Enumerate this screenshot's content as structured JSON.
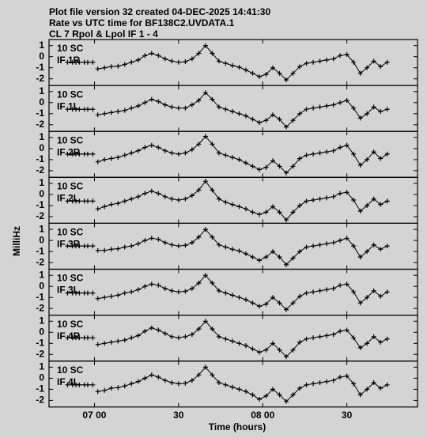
{
  "chart_data": {
    "type": "line",
    "title": "Plot file version 32  created 04-DEC-2025 14:41:30",
    "subtitle": "Rate vs UTC time for BF138C2.UVDATA.1",
    "caption": "CL 7  Rpol & Lpol  IF 1 - 4",
    "ylabel": "MilliHz",
    "xlabel": "Time (hours)",
    "xlim": [
      6.73,
      8.92
    ],
    "ylim": [
      -2.6,
      1.55
    ],
    "yticks": [
      1,
      0,
      -1,
      -2
    ],
    "xticks": [
      {
        "value": 7.0,
        "label": "07 00"
      },
      {
        "value": 7.5,
        "label": "30"
      },
      {
        "value": 8.0,
        "label": "08 00"
      },
      {
        "value": 8.5,
        "label": "30"
      }
    ],
    "color": "#000000",
    "x": [
      6.84,
      6.87,
      6.89,
      6.91,
      6.94,
      6.96,
      6.99,
      null,
      7.02,
      7.06,
      7.1,
      7.14,
      7.18,
      7.22,
      7.26,
      7.3,
      7.34,
      7.38,
      7.42,
      7.46,
      7.5,
      7.54,
      7.58,
      7.62,
      7.66,
      7.7,
      7.74,
      7.78,
      7.82,
      7.86,
      7.9,
      7.94,
      7.98,
      8.02,
      8.06,
      8.1,
      8.14,
      8.18,
      8.22,
      8.26,
      8.3,
      8.34,
      8.38,
      8.42,
      8.46,
      8.5,
      8.54,
      8.58,
      8.62,
      8.66,
      8.7,
      8.74
    ],
    "series": [
      {
        "source": "10 SC",
        "name": "IF 1R",
        "values": [
          -0.5,
          -0.5,
          -0.5,
          -0.5,
          -0.5,
          -0.5,
          -0.5,
          null,
          -1.1,
          -1.0,
          -0.9,
          -0.85,
          -0.7,
          -0.5,
          -0.3,
          0.1,
          0.3,
          0.1,
          -0.2,
          -0.4,
          -0.5,
          -0.45,
          -0.2,
          0.3,
          1.0,
          0.3,
          -0.4,
          -0.6,
          -0.8,
          -0.95,
          -1.2,
          -1.5,
          -1.8,
          -1.6,
          -1.0,
          -1.5,
          -2.1,
          -1.5,
          -0.9,
          -0.6,
          -0.5,
          -0.4,
          -0.3,
          -0.2,
          0.1,
          0.2,
          -0.5,
          -1.5,
          -1.0,
          -0.4,
          -0.9,
          -0.5
        ]
      },
      {
        "source": "10 SC",
        "name": "IF 1L",
        "values": [
          -0.6,
          -0.6,
          -0.6,
          -0.6,
          -0.6,
          -0.6,
          -0.6,
          null,
          -1.1,
          -1.0,
          -0.9,
          -0.8,
          -0.7,
          -0.5,
          -0.3,
          0.0,
          0.3,
          0.1,
          -0.2,
          -0.4,
          -0.5,
          -0.5,
          -0.2,
          0.2,
          0.9,
          0.3,
          -0.4,
          -0.6,
          -0.8,
          -1.0,
          -1.2,
          -1.5,
          -1.8,
          -1.6,
          -1.1,
          -1.5,
          -2.2,
          -1.6,
          -1.0,
          -0.6,
          -0.5,
          -0.4,
          -0.3,
          -0.2,
          0.0,
          0.2,
          -0.5,
          -1.4,
          -1.0,
          -0.4,
          -0.8,
          -0.6
        ]
      },
      {
        "source": "10 SC",
        "name": "IF 2R",
        "values": [
          -0.5,
          -0.5,
          -0.5,
          -0.5,
          -0.5,
          -0.5,
          -0.5,
          null,
          -1.2,
          -1.0,
          -0.9,
          -0.8,
          -0.6,
          -0.4,
          -0.2,
          0.1,
          0.3,
          0.1,
          -0.2,
          -0.4,
          -0.5,
          -0.4,
          -0.1,
          0.4,
          1.1,
          0.4,
          -0.4,
          -0.6,
          -0.8,
          -1.0,
          -1.3,
          -1.6,
          -1.9,
          -1.7,
          -1.1,
          -1.6,
          -2.2,
          -1.6,
          -0.9,
          -0.6,
          -0.5,
          -0.4,
          -0.3,
          -0.2,
          0.1,
          0.3,
          -0.5,
          -1.5,
          -1.0,
          -0.3,
          -0.9,
          -0.5
        ]
      },
      {
        "source": "10 SC",
        "name": "IF 2L",
        "values": [
          -0.6,
          -0.6,
          -0.6,
          -0.6,
          -0.6,
          -0.6,
          -0.6,
          null,
          -1.3,
          -1.1,
          -0.9,
          -0.8,
          -0.6,
          -0.4,
          -0.2,
          0.1,
          0.3,
          0.1,
          -0.2,
          -0.4,
          -0.5,
          -0.4,
          -0.1,
          0.4,
          1.2,
          0.4,
          -0.4,
          -0.7,
          -0.9,
          -1.1,
          -1.3,
          -1.6,
          -1.8,
          -1.6,
          -1.1,
          -1.6,
          -2.3,
          -1.6,
          -1.0,
          -0.6,
          -0.5,
          -0.4,
          -0.3,
          -0.2,
          0.1,
          0.2,
          -0.5,
          -1.5,
          -1.0,
          -0.4,
          -0.9,
          -0.6
        ]
      },
      {
        "source": "10 SC",
        "name": "IF 3R",
        "values": [
          -0.5,
          -0.5,
          -0.5,
          -0.5,
          -0.5,
          -0.5,
          -0.5,
          null,
          -0.9,
          -0.9,
          -0.8,
          -0.75,
          -0.6,
          -0.5,
          -0.3,
          0.0,
          0.2,
          0.1,
          -0.2,
          -0.4,
          -0.5,
          -0.45,
          -0.2,
          0.3,
          1.0,
          0.3,
          -0.4,
          -0.6,
          -0.8,
          -0.95,
          -1.2,
          -1.5,
          -1.8,
          -1.5,
          -1.0,
          -1.5,
          -2.2,
          -1.6,
          -1.0,
          -0.6,
          -0.5,
          -0.4,
          -0.3,
          -0.2,
          0.0,
          0.2,
          -0.5,
          -1.5,
          -1.0,
          -0.4,
          -0.8,
          -0.5
        ]
      },
      {
        "source": "10 SC",
        "name": "IF 3L",
        "values": [
          -0.6,
          -0.6,
          -0.6,
          -0.6,
          -0.6,
          -0.6,
          -0.6,
          null,
          -1.1,
          -1.0,
          -0.9,
          -0.8,
          -0.6,
          -0.5,
          -0.3,
          0.0,
          0.2,
          0.1,
          -0.2,
          -0.4,
          -0.5,
          -0.45,
          -0.2,
          0.3,
          1.0,
          0.3,
          -0.4,
          -0.6,
          -0.8,
          -1.0,
          -1.2,
          -1.5,
          -1.8,
          -1.6,
          -1.0,
          -1.5,
          -2.1,
          -1.5,
          -0.9,
          -0.6,
          -0.5,
          -0.4,
          -0.3,
          -0.2,
          0.1,
          0.2,
          -0.5,
          -1.5,
          -1.0,
          -0.4,
          -0.9,
          -0.5
        ]
      },
      {
        "source": "10 SC",
        "name": "IF 4R",
        "values": [
          -0.5,
          -0.5,
          -0.5,
          -0.5,
          -0.5,
          -0.5,
          -0.5,
          null,
          -1.1,
          -1.0,
          -0.9,
          -0.8,
          -0.7,
          -0.5,
          -0.3,
          0.1,
          0.4,
          0.2,
          -0.1,
          -0.4,
          -0.5,
          -0.4,
          -0.2,
          0.3,
          1.0,
          0.3,
          -0.4,
          -0.6,
          -0.8,
          -1.0,
          -1.2,
          -1.5,
          -1.8,
          -1.6,
          -1.0,
          -1.6,
          -2.2,
          -1.6,
          -0.9,
          -0.6,
          -0.5,
          -0.4,
          -0.3,
          -0.2,
          0.1,
          0.2,
          -0.5,
          -1.4,
          -1.0,
          -0.4,
          -0.9,
          -0.6
        ]
      },
      {
        "source": "10 SC",
        "name": "IF 4L",
        "values": [
          -0.6,
          -0.6,
          -0.6,
          -0.6,
          -0.6,
          -0.6,
          -0.6,
          null,
          -1.2,
          -1.1,
          -0.9,
          -0.85,
          -0.7,
          -0.5,
          -0.3,
          0.0,
          0.3,
          0.1,
          -0.2,
          -0.4,
          -0.5,
          -0.45,
          -0.2,
          0.3,
          1.0,
          0.3,
          -0.4,
          -0.6,
          -0.8,
          -1.0,
          -1.2,
          -1.5,
          -1.9,
          -1.6,
          -1.0,
          -1.5,
          -2.1,
          -1.5,
          -0.9,
          -0.6,
          -0.5,
          -0.4,
          -0.3,
          -0.2,
          0.1,
          0.2,
          -0.5,
          -1.5,
          -1.0,
          -0.4,
          -0.9,
          -0.6
        ]
      }
    ]
  }
}
